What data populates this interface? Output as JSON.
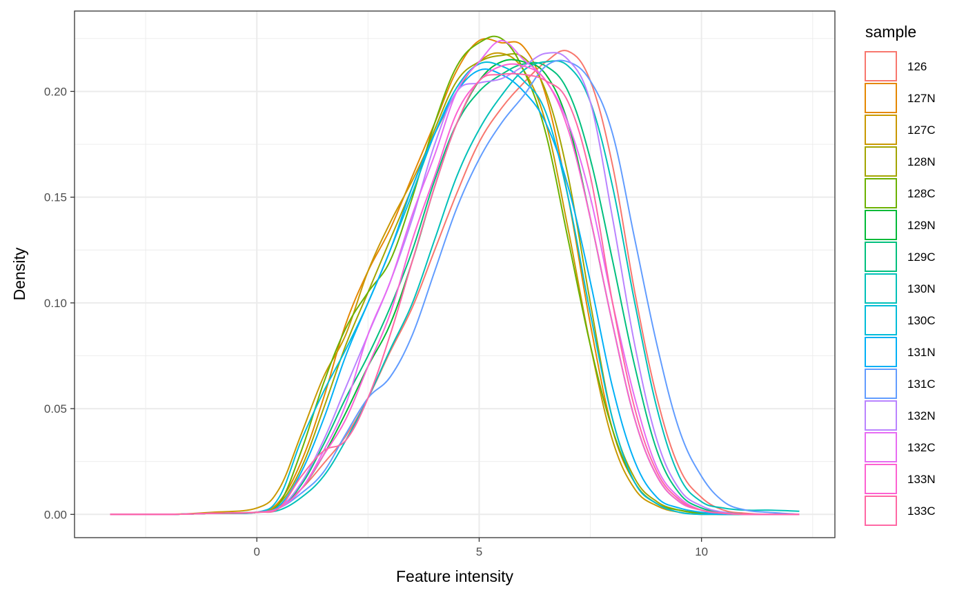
{
  "chart_data": {
    "type": "line",
    "title": "",
    "xlabel": "Feature intensity",
    "ylabel": "Density",
    "xlim": [
      -4.1,
      13.0
    ],
    "ylim": [
      -0.011,
      0.238
    ],
    "x_ticks": [
      0,
      5,
      10
    ],
    "x_tick_labels": [
      "0",
      "5",
      "10"
    ],
    "y_ticks": [
      0,
      0.05,
      0.1,
      0.15,
      0.2
    ],
    "y_tick_labels": [
      "0.00",
      "0.05",
      "0.10",
      "0.15",
      "0.20"
    ],
    "grid": true,
    "legend": {
      "title": "sample",
      "position": "right"
    },
    "x": [
      -3.3,
      -2,
      -1,
      0,
      0.5,
      1,
      1.5,
      2,
      2.5,
      3,
      3.5,
      4,
      4.5,
      5,
      5.5,
      6,
      6.5,
      7,
      7.5,
      8,
      8.5,
      9,
      9.5,
      10,
      10.5,
      11,
      11.5,
      12.2
    ],
    "series": [
      {
        "name": "126",
        "color": "#F8766D",
        "values": [
          0,
          0,
          0.0005,
          0.001,
          0.004,
          0.012,
          0.024,
          0.037,
          0.055,
          0.077,
          0.098,
          0.125,
          0.152,
          0.176,
          0.192,
          0.204,
          0.214,
          0.219,
          0.205,
          0.165,
          0.105,
          0.055,
          0.022,
          0.008,
          0.002,
          0.0005,
          0,
          0
        ]
      },
      {
        "name": "127N",
        "color": "#E58700",
        "values": [
          0,
          0,
          0.0005,
          0.001,
          0.006,
          0.025,
          0.055,
          0.09,
          0.115,
          0.135,
          0.16,
          0.185,
          0.21,
          0.224,
          0.223,
          0.221,
          0.198,
          0.15,
          0.09,
          0.04,
          0.015,
          0.005,
          0.002,
          0.0005,
          0,
          0,
          0,
          0
        ]
      },
      {
        "name": "127C",
        "color": "#C99800",
        "values": [
          0,
          0,
          0.001,
          0.003,
          0.012,
          0.038,
          0.065,
          0.085,
          0.115,
          0.138,
          0.158,
          0.18,
          0.2,
          0.214,
          0.218,
          0.21,
          0.185,
          0.135,
          0.08,
          0.035,
          0.012,
          0.004,
          0.001,
          0,
          0,
          0,
          0,
          0
        ]
      },
      {
        "name": "128N",
        "color": "#A3A500",
        "values": [
          0,
          0,
          0.0005,
          0.001,
          0.005,
          0.022,
          0.05,
          0.08,
          0.105,
          0.13,
          0.155,
          0.182,
          0.205,
          0.214,
          0.217,
          0.216,
          0.2,
          0.16,
          0.1,
          0.045,
          0.017,
          0.006,
          0.002,
          0.0005,
          0,
          0,
          0,
          0
        ]
      },
      {
        "name": "128C",
        "color": "#6BB100",
        "values": [
          0,
          0,
          0.0005,
          0.001,
          0.005,
          0.03,
          0.062,
          0.088,
          0.105,
          0.12,
          0.15,
          0.185,
          0.212,
          0.223,
          0.225,
          0.21,
          0.18,
          0.13,
          0.08,
          0.04,
          0.015,
          0.005,
          0.002,
          0.0005,
          0,
          0,
          0,
          0
        ]
      },
      {
        "name": "129N",
        "color": "#00BA38",
        "values": [
          0,
          0,
          0.0005,
          0.001,
          0.003,
          0.012,
          0.028,
          0.048,
          0.07,
          0.09,
          0.12,
          0.155,
          0.185,
          0.205,
          0.214,
          0.214,
          0.208,
          0.185,
          0.14,
          0.09,
          0.045,
          0.018,
          0.006,
          0.002,
          0.0005,
          0,
          0,
          0
        ]
      },
      {
        "name": "129C",
        "color": "#00BF7D",
        "values": [
          0,
          0,
          0.0005,
          0.001,
          0.003,
          0.014,
          0.033,
          0.055,
          0.075,
          0.098,
          0.125,
          0.158,
          0.185,
          0.2,
          0.208,
          0.213,
          0.212,
          0.2,
          0.168,
          0.12,
          0.07,
          0.03,
          0.01,
          0.003,
          0.001,
          0,
          0,
          0
        ]
      },
      {
        "name": "130N",
        "color": "#00C0B8",
        "values": [
          0,
          0,
          0.0005,
          0.001,
          0.002,
          0.008,
          0.018,
          0.035,
          0.055,
          0.078,
          0.1,
          0.13,
          0.16,
          0.182,
          0.198,
          0.21,
          0.214,
          0.212,
          0.195,
          0.155,
          0.1,
          0.05,
          0.018,
          0.006,
          0.003,
          0.002,
          0.002,
          0.0015
        ]
      },
      {
        "name": "130C",
        "color": "#00BCD8",
        "values": [
          0,
          0,
          0.0005,
          0.001,
          0.008,
          0.035,
          0.058,
          0.078,
          0.1,
          0.125,
          0.152,
          0.18,
          0.202,
          0.213,
          0.212,
          0.205,
          0.19,
          0.15,
          0.095,
          0.045,
          0.015,
          0.005,
          0.001,
          0,
          0,
          0,
          0,
          0
        ]
      },
      {
        "name": "131N",
        "color": "#00B0F6",
        "values": [
          0,
          0,
          0.0005,
          0.001,
          0.004,
          0.02,
          0.045,
          0.075,
          0.1,
          0.125,
          0.155,
          0.18,
          0.2,
          0.21,
          0.208,
          0.2,
          0.185,
          0.155,
          0.11,
          0.06,
          0.025,
          0.008,
          0.003,
          0.001,
          0,
          0,
          0,
          0
        ]
      },
      {
        "name": "131C",
        "color": "#619CFF",
        "values": [
          0,
          0,
          0.0005,
          0.001,
          0.003,
          0.01,
          0.02,
          0.038,
          0.055,
          0.065,
          0.085,
          0.115,
          0.145,
          0.168,
          0.185,
          0.198,
          0.212,
          0.214,
          0.205,
          0.18,
          0.13,
          0.08,
          0.04,
          0.018,
          0.006,
          0.002,
          0.001,
          0
        ]
      },
      {
        "name": "132N",
        "color": "#B983FF",
        "values": [
          0,
          0,
          0.0005,
          0.001,
          0.003,
          0.015,
          0.035,
          0.06,
          0.085,
          0.11,
          0.14,
          0.175,
          0.2,
          0.204,
          0.206,
          0.212,
          0.218,
          0.215,
          0.195,
          0.14,
          0.08,
          0.035,
          0.012,
          0.004,
          0.001,
          0,
          0,
          0
        ]
      },
      {
        "name": "132C",
        "color": "#E76BF3",
        "values": [
          0,
          0,
          0.0005,
          0.001,
          0.003,
          0.012,
          0.03,
          0.052,
          0.085,
          0.11,
          0.142,
          0.17,
          0.2,
          0.214,
          0.224,
          0.215,
          0.205,
          0.185,
          0.15,
          0.1,
          0.055,
          0.022,
          0.008,
          0.002,
          0.0005,
          0,
          0,
          0
        ]
      },
      {
        "name": "133N",
        "color": "#FD61D1",
        "values": [
          0,
          0,
          0.0005,
          0.001,
          0.003,
          0.012,
          0.028,
          0.045,
          0.07,
          0.095,
          0.13,
          0.16,
          0.19,
          0.205,
          0.212,
          0.212,
          0.205,
          0.182,
          0.14,
          0.09,
          0.045,
          0.018,
          0.006,
          0.002,
          0.0005,
          0,
          0,
          0
        ]
      },
      {
        "name": "133C",
        "color": "#FF67A4",
        "values": [
          0,
          0,
          0.0005,
          0.001,
          0.003,
          0.018,
          0.03,
          0.035,
          0.055,
          0.085,
          0.12,
          0.155,
          0.185,
          0.205,
          0.208,
          0.208,
          0.205,
          0.195,
          0.16,
          0.1,
          0.05,
          0.02,
          0.007,
          0.002,
          0.0005,
          0,
          0,
          0
        ]
      }
    ]
  }
}
